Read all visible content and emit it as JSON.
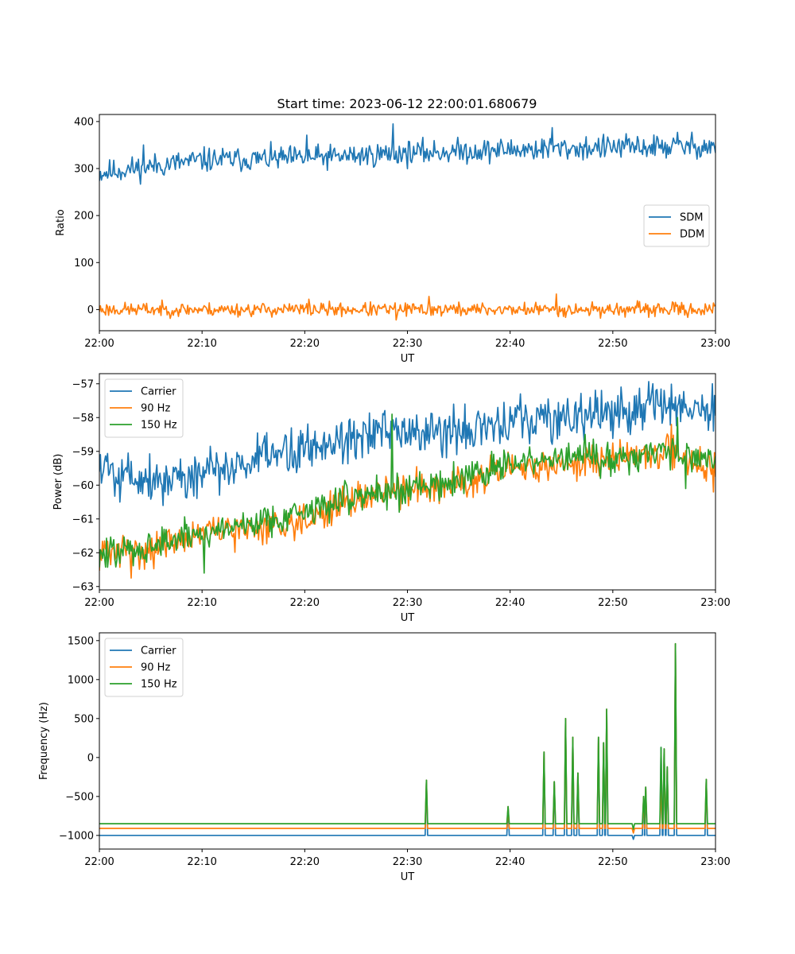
{
  "figure": {
    "title": "Start time: 2023-06-12 22:00:01.680679"
  },
  "colors": {
    "blue": "#1f77b4",
    "orange": "#ff7f0e",
    "green": "#2ca02c"
  },
  "chart_data": [
    {
      "type": "line",
      "title": "Start time: 2023-06-12 22:00:01.680679",
      "xlabel": "UT",
      "ylabel": "Ratio",
      "xlim": [
        "22:00",
        "23:00"
      ],
      "xticks": [
        "22:00",
        "22:10",
        "22:20",
        "22:30",
        "22:40",
        "22:50",
        "23:00"
      ],
      "ylim": [
        -45,
        415
      ],
      "yticks": [
        0,
        100,
        200,
        300,
        400
      ],
      "legend_loc": "center-right",
      "grid": false,
      "series": [
        {
          "name": "SDM",
          "color": "#1f77b4",
          "baseline": [
            [
              0,
              290
            ],
            [
              5,
              305
            ],
            [
              10,
              318
            ],
            [
              20,
              322
            ],
            [
              30,
              333
            ],
            [
              40,
              340
            ],
            [
              50,
              345
            ],
            [
              60,
              348
            ]
          ],
          "noise": 16,
          "seed": 11,
          "spikes": [
            [
              28.6,
              395
            ],
            [
              44.1,
              387
            ],
            [
              56.3,
              377
            ],
            [
              20.2,
              371
            ],
            [
              4.3,
              350
            ]
          ]
        },
        {
          "name": "DDM",
          "color": "#ff7f0e",
          "baseline": [
            [
              0,
              0
            ],
            [
              60,
              0
            ]
          ],
          "noise": 9,
          "seed": 23,
          "spikes": [
            [
              44.5,
              33
            ],
            [
              32.1,
              28
            ],
            [
              28.9,
              -22
            ],
            [
              20.4,
              22
            ]
          ]
        }
      ]
    },
    {
      "type": "line",
      "title": "",
      "xlabel": "UT",
      "ylabel": "Power (dB)",
      "xlim": [
        "22:00",
        "23:00"
      ],
      "xticks": [
        "22:00",
        "22:10",
        "22:20",
        "22:30",
        "22:40",
        "22:50",
        "23:00"
      ],
      "ylim": [
        -63.1,
        -56.7
      ],
      "yticks": [
        -63,
        -62,
        -61,
        -60,
        -59,
        -58,
        -57
      ],
      "legend_loc": "upper-left",
      "grid": false,
      "series": [
        {
          "name": "Carrier",
          "color": "#1f77b4",
          "baseline": [
            [
              0,
              -59.4
            ],
            [
              5,
              -59.8
            ],
            [
              10,
              -59.7
            ],
            [
              15,
              -59.3
            ],
            [
              20,
              -58.9
            ],
            [
              25,
              -58.5
            ],
            [
              30,
              -58.5
            ],
            [
              35,
              -58.4
            ],
            [
              40,
              -58.2
            ],
            [
              45,
              -58.0
            ],
            [
              50,
              -57.9
            ],
            [
              55,
              -57.6
            ],
            [
              60,
              -57.8
            ]
          ],
          "noise": 0.45,
          "seed": 5,
          "spikes": [
            [
              2.0,
              -60.5
            ],
            [
              6.2,
              -60.6
            ],
            [
              41.0,
              -57.3
            ],
            [
              53.9,
              -57.0
            ],
            [
              59.7,
              -57.0
            ],
            [
              35.6,
              -57.6
            ],
            [
              59.8,
              -58.4
            ]
          ]
        },
        {
          "name": "90 Hz",
          "color": "#ff7f0e",
          "baseline": [
            [
              0,
              -62.0
            ],
            [
              5,
              -61.9
            ],
            [
              10,
              -61.4
            ],
            [
              15,
              -61.3
            ],
            [
              20,
              -61.0
            ],
            [
              25,
              -60.4
            ],
            [
              30,
              -60.1
            ],
            [
              35,
              -59.9
            ],
            [
              40,
              -59.6
            ],
            [
              45,
              -59.4
            ],
            [
              50,
              -59.2
            ],
            [
              55,
              -59.0
            ],
            [
              60,
              -59.5
            ]
          ],
          "noise": 0.3,
          "seed": 31,
          "spikes": [
            [
              3.1,
              -62.75
            ],
            [
              55.7,
              -58.2
            ],
            [
              59.8,
              -60.2
            ]
          ]
        },
        {
          "name": "150 Hz",
          "color": "#2ca02c",
          "baseline": [
            [
              0,
              -62.1
            ],
            [
              5,
              -61.8
            ],
            [
              10,
              -61.4
            ],
            [
              15,
              -61.1
            ],
            [
              20,
              -60.8
            ],
            [
              25,
              -60.3
            ],
            [
              30,
              -60.1
            ],
            [
              35,
              -59.8
            ],
            [
              40,
              -59.4
            ],
            [
              45,
              -59.2
            ],
            [
              50,
              -59.2
            ],
            [
              55,
              -59.0
            ],
            [
              60,
              -59.2
            ]
          ],
          "noise": 0.3,
          "seed": 47,
          "spikes": [
            [
              28.5,
              -57.9
            ],
            [
              56.3,
              -58.0
            ],
            [
              10.2,
              -62.6
            ],
            [
              29.2,
              -60.8
            ],
            [
              57.1,
              -60.1
            ],
            [
              47.3,
              -58.5
            ]
          ]
        }
      ]
    },
    {
      "type": "line",
      "title": "",
      "xlabel": "UT",
      "ylabel": "Frequency (Hz)",
      "xlim": [
        "22:00",
        "23:00"
      ],
      "xticks": [
        "22:00",
        "22:10",
        "22:20",
        "22:30",
        "22:40",
        "22:50",
        "23:00"
      ],
      "ylim": [
        -1175,
        1600
      ],
      "yticks": [
        -1000,
        -500,
        0,
        500,
        1000,
        1500
      ],
      "legend_loc": "upper-left",
      "grid": false,
      "series": [
        {
          "name": "Carrier",
          "color": "#1f77b4",
          "level": -1000,
          "spikes": [
            [
              31.85,
              -290
            ],
            [
              39.8,
              -630
            ],
            [
              43.3,
              70
            ],
            [
              44.3,
              -310
            ],
            [
              45.4,
              500
            ],
            [
              46.1,
              260
            ],
            [
              46.6,
              -200
            ],
            [
              48.6,
              260
            ],
            [
              49.1,
              190
            ],
            [
              49.4,
              620
            ],
            [
              52.0,
              -1050
            ],
            [
              53.0,
              -500
            ],
            [
              53.2,
              -380
            ],
            [
              54.7,
              130
            ],
            [
              55.0,
              110
            ],
            [
              55.3,
              -120
            ],
            [
              56.1,
              1460
            ],
            [
              59.1,
              -280
            ]
          ]
        },
        {
          "name": "90 Hz",
          "color": "#ff7f0e",
          "level": -910,
          "spikes": [
            [
              31.85,
              -290
            ],
            [
              39.8,
              -630
            ],
            [
              43.3,
              70
            ],
            [
              44.3,
              -310
            ],
            [
              45.4,
              500
            ],
            [
              46.1,
              260
            ],
            [
              46.6,
              -200
            ],
            [
              48.6,
              260
            ],
            [
              49.1,
              190
            ],
            [
              49.4,
              620
            ],
            [
              52.0,
              -970
            ],
            [
              53.0,
              -500
            ],
            [
              53.2,
              -380
            ],
            [
              54.7,
              -340
            ],
            [
              55.0,
              110
            ],
            [
              55.3,
              -120
            ],
            [
              56.1,
              1460
            ],
            [
              59.1,
              -280
            ]
          ]
        },
        {
          "name": "150 Hz",
          "color": "#2ca02c",
          "level": -850,
          "spikes": [
            [
              31.85,
              -290
            ],
            [
              39.8,
              -630
            ],
            [
              43.3,
              70
            ],
            [
              44.3,
              -310
            ],
            [
              45.4,
              500
            ],
            [
              46.1,
              260
            ],
            [
              46.6,
              -200
            ],
            [
              48.6,
              260
            ],
            [
              49.1,
              190
            ],
            [
              49.4,
              620
            ],
            [
              52.0,
              -920
            ],
            [
              53.0,
              -500
            ],
            [
              53.2,
              -380
            ],
            [
              54.7,
              130
            ],
            [
              55.0,
              110
            ],
            [
              55.3,
              -120
            ],
            [
              56.1,
              1460
            ],
            [
              59.1,
              -280
            ]
          ]
        }
      ]
    }
  ]
}
